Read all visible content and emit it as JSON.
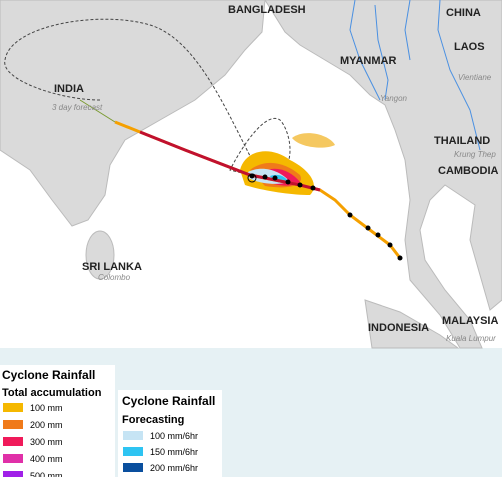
{
  "map": {
    "labels": [
      "BANGLADESH",
      "CHINA",
      "MYANMAR",
      "LAOS",
      "INDIA",
      "THAILAND",
      "CAMBODIA",
      "SRI LANKA",
      "INDONESIA",
      "MALAYSIA"
    ],
    "cities": [
      "Vientiane",
      "Yangon",
      "Krung Thep",
      "Colombo",
      "Kuala Lumpur"
    ],
    "forecast_label": "3 day forecast"
  },
  "legend_total": {
    "title": "Cyclone Rainfall",
    "subtitle": "Total accumulation",
    "items": [
      {
        "label": "100 mm",
        "color": "#f5b800"
      },
      {
        "label": "200 mm",
        "color": "#f07a1a"
      },
      {
        "label": "300 mm",
        "color": "#f01a5a"
      },
      {
        "label": "400 mm",
        "color": "#e030a8"
      },
      {
        "label": "500 mm",
        "color": "#a020e8"
      }
    ]
  },
  "legend_forecast": {
    "title": "Cyclone Rainfall",
    "subtitle": "Forecasting",
    "items": [
      {
        "label": "100 mm/6hr",
        "color": "#c6e4f4"
      },
      {
        "label": "150 mm/6hr",
        "color": "#2ec4f2"
      },
      {
        "label": "200 mm/6hr",
        "color": "#0a4f9e"
      }
    ]
  }
}
